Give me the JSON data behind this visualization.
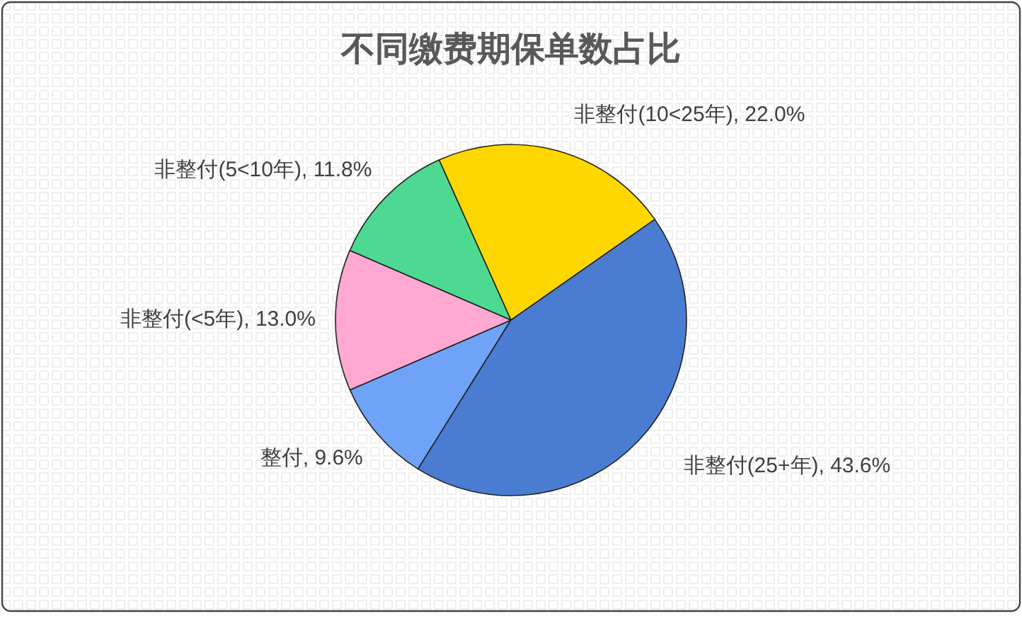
{
  "chart_data": {
    "type": "pie",
    "title": "不同缴费期保单数占比",
    "categories": [
      "整付",
      "非整付(<5年)",
      "非整付(5<10年)",
      "非整付(10<25年)",
      "非整付(25+年)"
    ],
    "values": [
      9.6,
      13.0,
      11.8,
      22.0,
      43.6
    ],
    "colors": [
      "#6fa3f7",
      "#ffa8d2",
      "#4dd991",
      "#ffd700",
      "#4a7dd1"
    ],
    "value_labels": [
      "9.6%",
      "13.0%",
      "11.8%",
      "22.0%",
      "43.6%"
    ]
  }
}
